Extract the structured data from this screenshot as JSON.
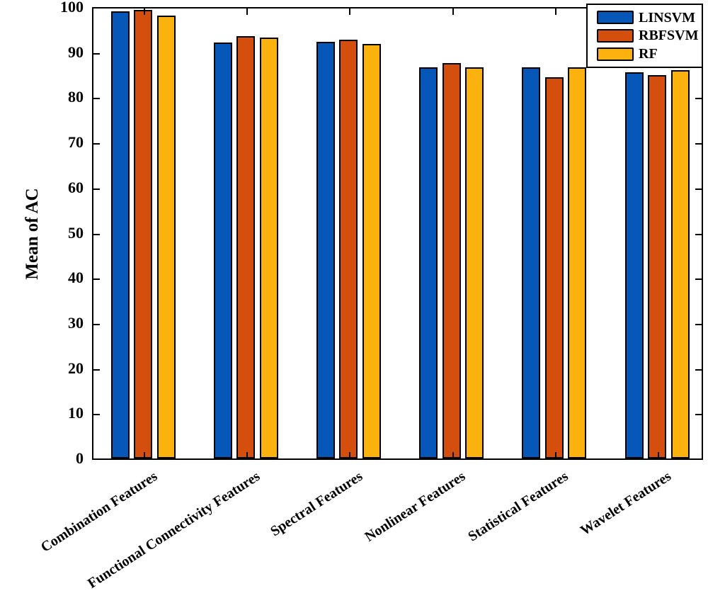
{
  "chart_data": {
    "type": "bar",
    "title": "",
    "xlabel": "",
    "ylabel": "Mean of AC",
    "ylim": [
      0,
      100
    ],
    "yticks": [
      0,
      10,
      20,
      30,
      40,
      50,
      60,
      70,
      80,
      90,
      100
    ],
    "grid": false,
    "box": true,
    "tick_direction": "in",
    "legend_position": "top-right",
    "x_label_rotation_deg": -33,
    "categories": [
      "Combination Features",
      "Functional Connectivity Features",
      "Spectral Features",
      "Nonlinear Features",
      "Statistical Features",
      "Wavelet Features"
    ],
    "series": [
      {
        "name": "LINSVM",
        "color": "#0757b8",
        "values": [
          99.0,
          92.2,
          92.3,
          86.6,
          86.7,
          85.5
        ]
      },
      {
        "name": "RBFSVM",
        "color": "#d44e0e",
        "values": [
          99.3,
          93.5,
          92.8,
          87.6,
          84.5,
          85.0
        ]
      },
      {
        "name": "RF",
        "color": "#fbb10e",
        "values": [
          98.1,
          93.2,
          91.8,
          86.7,
          86.7,
          86.0
        ]
      }
    ],
    "bar_outline_color": "#000000",
    "axis_color": "#000000",
    "background_color": "#ffffff"
  }
}
